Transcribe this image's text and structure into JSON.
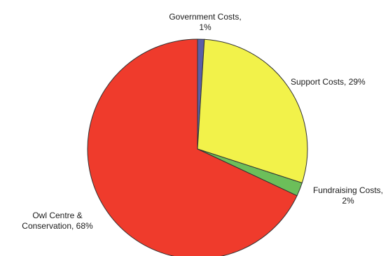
{
  "chart_data": {
    "type": "pie",
    "title": "",
    "slices": [
      {
        "label": "Government Costs, 1%",
        "label_lines": [
          "Government Costs,",
          "1%"
        ],
        "value": 1,
        "color": "#5a5fa8"
      },
      {
        "label": "Support Costs, 29%",
        "label_lines": [
          "Support Costs, 29%"
        ],
        "value": 29,
        "color": "#f2f24a"
      },
      {
        "label": "Fundraising Costs, 2%",
        "label_lines": [
          "Fundraising Costs,",
          "2%"
        ],
        "value": 2,
        "color": "#6cbf5a"
      },
      {
        "label": "Owl Centre & Conservation, 68%",
        "label_lines": [
          "Owl Centre &",
          "Conservation, 68%"
        ],
        "value": 68,
        "color": "#ef3b2c"
      }
    ],
    "start": "top",
    "direction": "clockwise",
    "legend": "none"
  }
}
